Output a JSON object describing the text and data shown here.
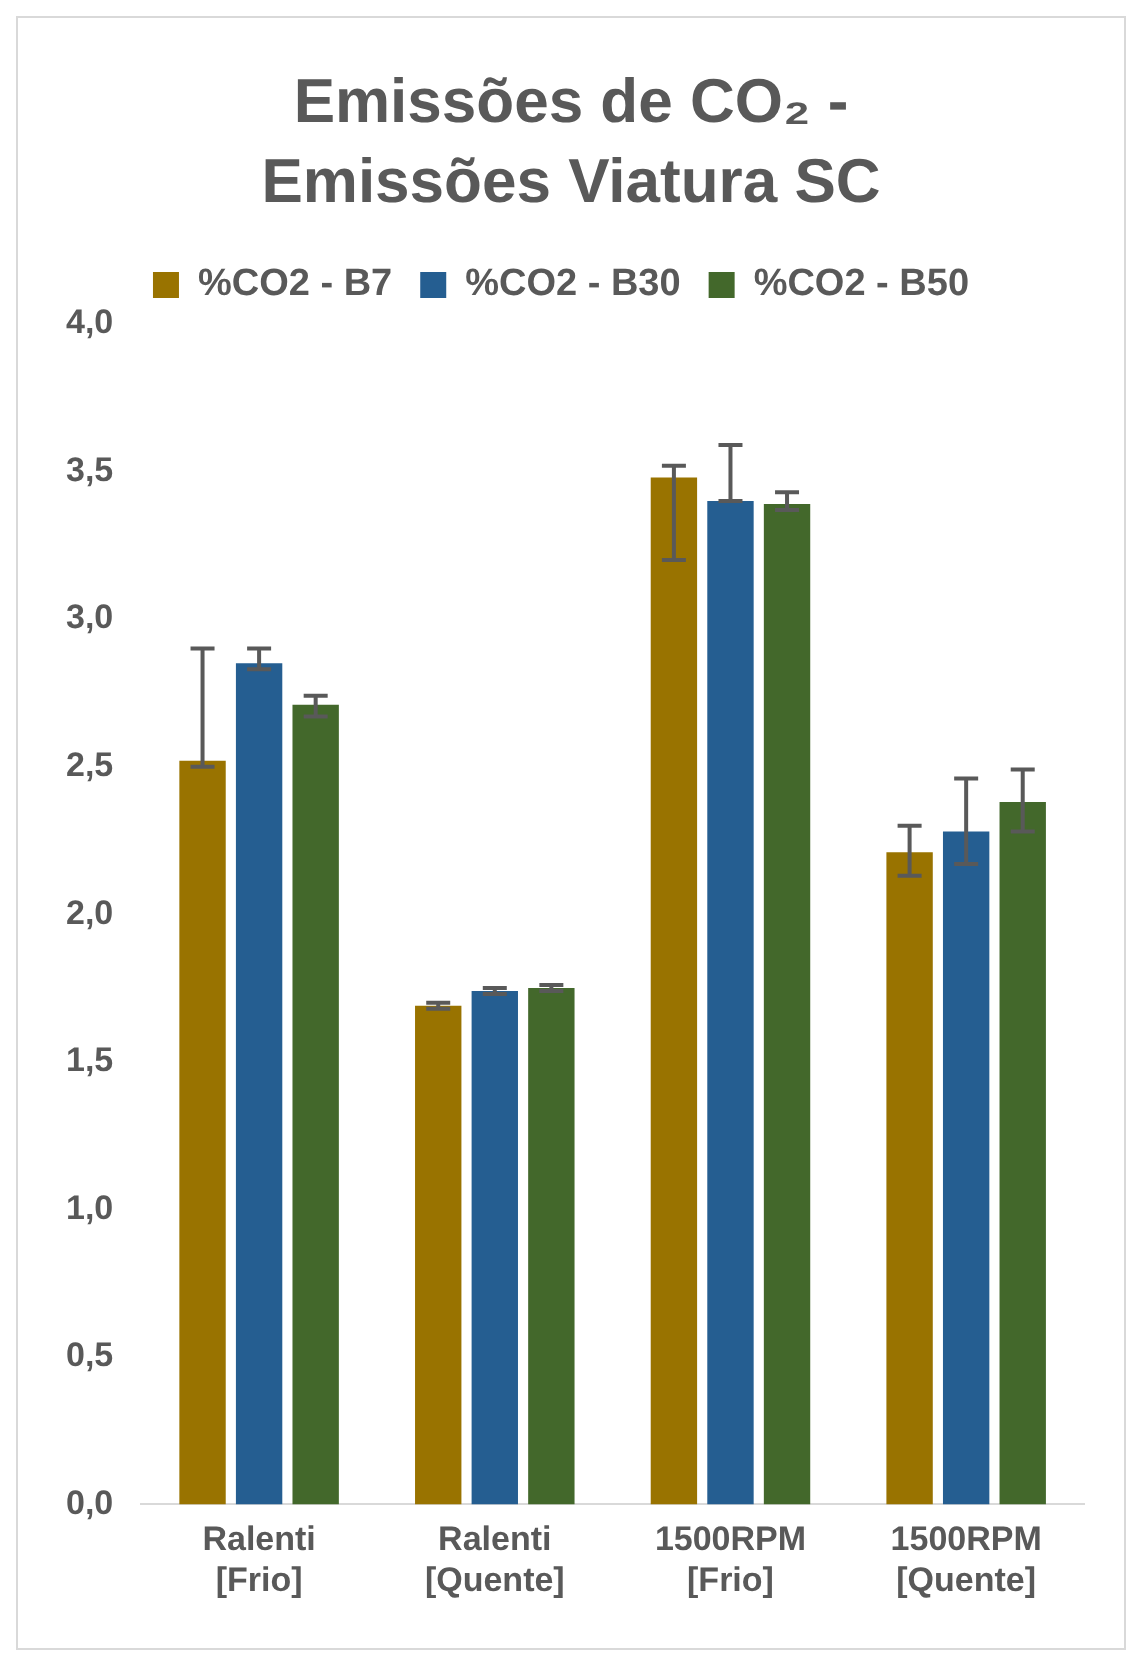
{
  "chart_data": {
    "type": "bar",
    "title": "Emissões de CO₂ - Emissões Viatura SC",
    "categories": [
      "Ralenti [Frio]",
      "Ralenti [Quente]",
      "1500RPM [Frio]",
      "1500RPM [Quente]"
    ],
    "series": [
      {
        "name": "%CO2 - B7",
        "color": "#997300",
        "values": [
          2.52,
          1.69,
          3.48,
          2.21
        ],
        "errors": [
          [
            2.5,
            2.9
          ],
          [
            1.68,
            1.7
          ],
          [
            3.2,
            3.52
          ],
          [
            2.13,
            2.3
          ]
        ]
      },
      {
        "name": "%CO2 - B30",
        "color": "#255e91",
        "values": [
          2.85,
          1.74,
          3.4,
          2.28
        ],
        "errors": [
          [
            2.83,
            2.9
          ],
          [
            1.73,
            1.75
          ],
          [
            3.4,
            3.59
          ],
          [
            2.17,
            2.46
          ]
        ]
      },
      {
        "name": "%CO2 - B50",
        "color": "#43682b",
        "values": [
          2.71,
          1.75,
          3.39,
          2.38
        ],
        "errors": [
          [
            2.67,
            2.74
          ],
          [
            1.74,
            1.76
          ],
          [
            3.37,
            3.43
          ],
          [
            2.28,
            2.49
          ]
        ]
      }
    ],
    "ylim": [
      0,
      4
    ],
    "yticks": [
      {
        "value": 0,
        "label": "0,0"
      },
      {
        "value": 0.5,
        "label": "0,5"
      },
      {
        "value": 1,
        "label": "1,0"
      },
      {
        "value": 1.5,
        "label": "1,5"
      },
      {
        "value": 2,
        "label": "2,0"
      },
      {
        "value": 2.5,
        "label": "2,5"
      },
      {
        "value": 3,
        "label": "3,0"
      },
      {
        "value": 3.5,
        "label": "3,5"
      },
      {
        "value": 4,
        "label": "4,0"
      }
    ],
    "grid": false,
    "legend": "top"
  }
}
